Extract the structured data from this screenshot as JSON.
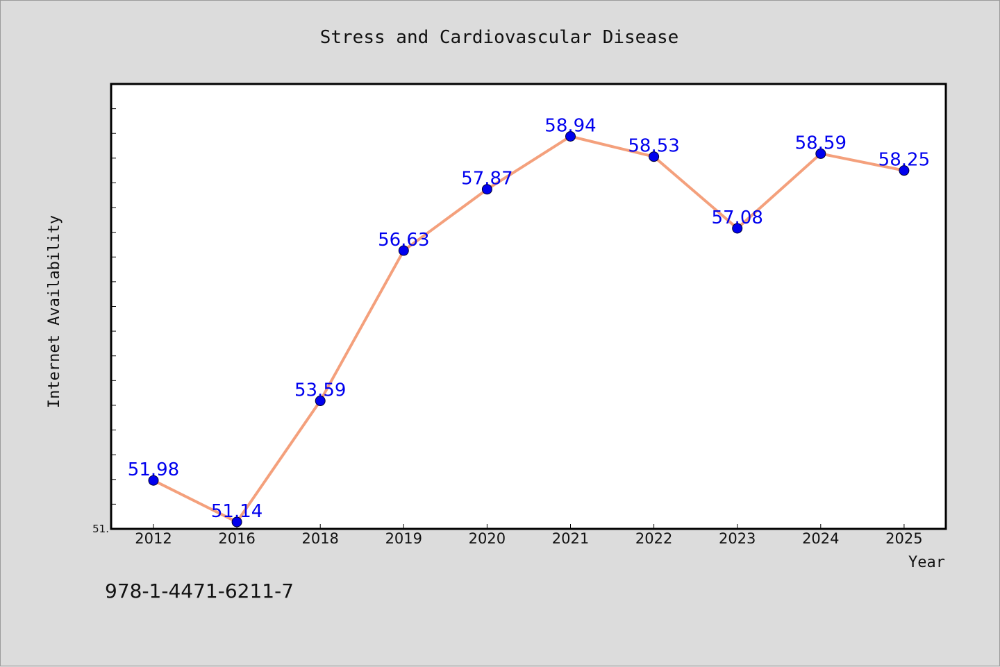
{
  "footnote": "978-1-4471-6211-7",
  "colors": {
    "background": "#dcdcdc",
    "plot_background": "#ffffff",
    "line": "#f4a07c",
    "marker": "#0000ee",
    "data_label": "#0000ee",
    "axis": "#000000"
  },
  "chart_data": {
    "type": "line",
    "title": "Stress and Cardiovascular Disease",
    "xlabel": "Year",
    "ylabel": "Internet Availability",
    "categories": [
      "2012",
      "2016",
      "2018",
      "2019",
      "2020",
      "2021",
      "2022",
      "2023",
      "2024",
      "2025"
    ],
    "series": [
      {
        "values": [
          51.98,
          51.14,
          53.59,
          56.63,
          57.87,
          58.94,
          58.53,
          57.08,
          58.59,
          58.25
        ],
        "data_labels": [
          "51.98",
          "51.14",
          "53.59",
          "56.63",
          "57.87",
          "58.94",
          "58.53",
          "57.08",
          "58.59",
          "58.25"
        ]
      }
    ],
    "ylim": [
      51.0,
      60.0
    ],
    "y_tick_labels": [
      {
        "value": 51.0,
        "label": "51."
      }
    ],
    "y_minor_tick_step": 0.5,
    "grid": false,
    "legend": "none"
  }
}
